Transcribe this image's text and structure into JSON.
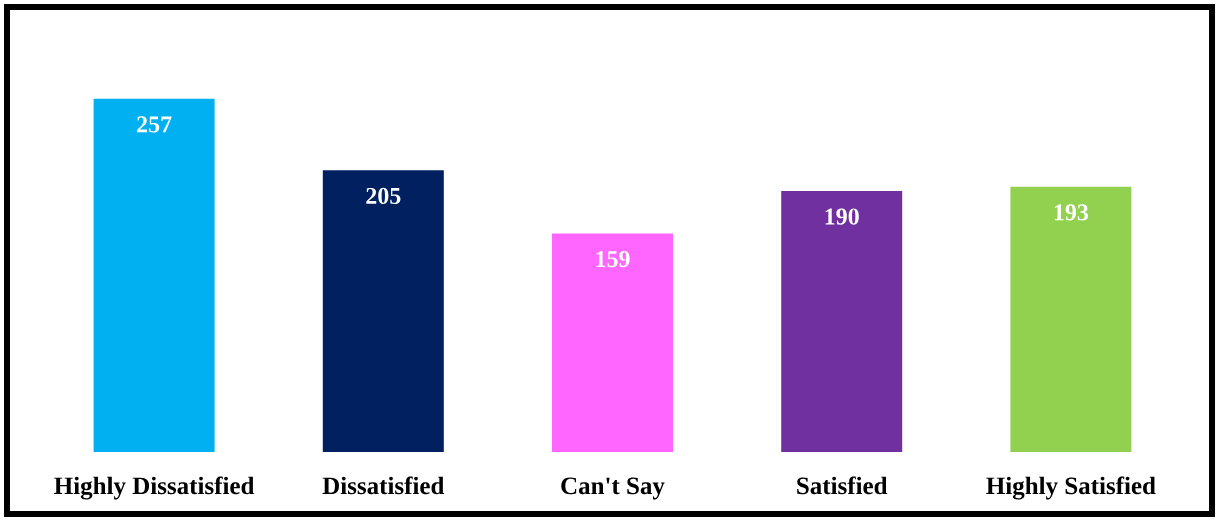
{
  "chart_data": {
    "type": "bar",
    "categories": [
      "Highly Dissatisfied",
      "Dissatisfied",
      "Can't Say",
      "Satisfied",
      "Highly Satisfied"
    ],
    "values": [
      257,
      205,
      159,
      190,
      193
    ],
    "colors": [
      "#00b0f0",
      "#002060",
      "#ff66ff",
      "#7030a0",
      "#92d050"
    ],
    "data_labels": true
  }
}
